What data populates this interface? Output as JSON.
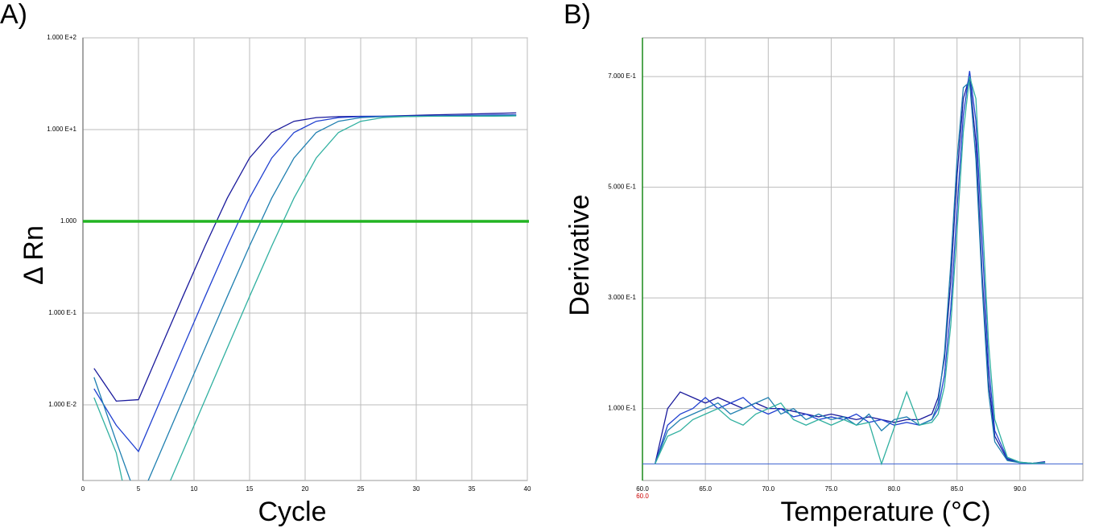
{
  "chart_data": [
    {
      "type": "line",
      "title": "A)",
      "xlabel": "Cycle",
      "ylabel": "Δ Rn",
      "ylog": true,
      "grid": true,
      "xlim": [
        0,
        40
      ],
      "ylim": [
        0.0015,
        100
      ],
      "xticks": [
        0,
        5,
        10,
        15,
        20,
        25,
        30,
        35,
        40
      ],
      "yticks": [
        {
          "value": 0.01,
          "label": "1.000 E-2"
        },
        {
          "value": 0.1,
          "label": "1.000 E-1"
        },
        {
          "value": 1,
          "label": "1.000"
        },
        {
          "value": 10,
          "label": "1.000 E+1"
        },
        {
          "value": 100,
          "label": "1.000 E+2"
        }
      ],
      "threshold": 1,
      "threshold_color": "#22b422",
      "x": [
        1,
        3,
        5,
        7,
        9,
        11,
        13,
        15,
        17,
        19,
        21,
        23,
        25,
        27,
        29,
        31,
        33,
        35,
        37,
        39
      ],
      "series": [
        {
          "color": "#1a1a9c",
          "values": [
            0.025,
            0.011,
            0.0114,
            0.0418,
            0.152,
            0.541,
            1.8,
            4.91,
            9.3,
            12.31,
            13.5,
            13.86,
            13.96,
            14.0,
            14.2,
            14.4,
            14.6,
            14.8,
            15.0,
            15.2
          ]
        },
        {
          "color": "#2040d0",
          "values": [
            0.015,
            0.006,
            0.0031,
            0.0114,
            0.0418,
            0.152,
            0.541,
            1.8,
            4.91,
            9.3,
            12.31,
            13.5,
            13.86,
            13.96,
            14.0,
            14.1,
            14.2,
            14.3,
            14.4,
            14.5
          ]
        },
        {
          "color": "#1f7fb0",
          "values": [
            0.02,
            0.004,
            0.00085,
            0.0031,
            0.0114,
            0.0418,
            0.152,
            0.541,
            1.8,
            4.91,
            9.3,
            12.31,
            13.5,
            13.86,
            13.96,
            14.0,
            14.0,
            14.1,
            14.2,
            14.3
          ]
        },
        {
          "color": "#30b0a0",
          "values": [
            0.012,
            0.003,
            0.00023,
            0.00085,
            0.0031,
            0.0114,
            0.0418,
            0.152,
            0.541,
            1.8,
            4.91,
            9.3,
            12.31,
            13.5,
            13.86,
            13.96,
            14.0,
            14.0,
            14.0,
            14.1
          ]
        }
      ]
    },
    {
      "type": "line",
      "title": "B)",
      "xlabel": "Temperature (°C)",
      "ylabel": "Derivative",
      "ylog": false,
      "grid": true,
      "xlim": [
        60,
        95
      ],
      "ylim": [
        -0.03,
        0.77
      ],
      "xticks": [
        {
          "value": 60,
          "label": "60.0"
        },
        {
          "value": 65,
          "label": "65.0"
        },
        {
          "value": 70,
          "label": "70.0"
        },
        {
          "value": 75,
          "label": "75.0"
        },
        {
          "value": 80,
          "label": "80.0"
        },
        {
          "value": 85,
          "label": "85.0"
        },
        {
          "value": 90,
          "label": "90.0"
        }
      ],
      "yticks": [
        {
          "value": 0.1,
          "label": "1.000 E-1"
        },
        {
          "value": 0.3,
          "label": "3.000 E-1"
        },
        {
          "value": 0.5,
          "label": "5.000 E-1"
        },
        {
          "value": 0.7,
          "label": "7.000 E-1"
        }
      ],
      "annotations": [
        {
          "text": "60.0",
          "x": 60,
          "color": "#cc0000"
        }
      ],
      "x": [
        61,
        62,
        63,
        64,
        65,
        66,
        67,
        68,
        69,
        70,
        71,
        72,
        73,
        74,
        75,
        76,
        77,
        78,
        79,
        80,
        81,
        82,
        83,
        83.5,
        84,
        84.5,
        85,
        85.5,
        86,
        86.5,
        87,
        87.5,
        88,
        89,
        90,
        91,
        92
      ],
      "series": [
        {
          "color": "#1a1a9c",
          "values": [
            0.0,
            0.1,
            0.13,
            0.12,
            0.11,
            0.12,
            0.11,
            0.1,
            0.11,
            0.1,
            0.1,
            0.095,
            0.09,
            0.085,
            0.09,
            0.085,
            0.08,
            0.085,
            0.08,
            0.075,
            0.08,
            0.08,
            0.09,
            0.12,
            0.19,
            0.33,
            0.52,
            0.66,
            0.7,
            0.58,
            0.34,
            0.15,
            0.05,
            0.008,
            0.002,
            0.001,
            0.004
          ]
        },
        {
          "color": "#2040d0",
          "values": [
            0.0,
            0.07,
            0.09,
            0.1,
            0.12,
            0.1,
            0.11,
            0.12,
            0.1,
            0.09,
            0.1,
            0.085,
            0.09,
            0.08,
            0.085,
            0.08,
            0.09,
            0.075,
            0.08,
            0.07,
            0.075,
            0.07,
            0.08,
            0.1,
            0.16,
            0.28,
            0.46,
            0.63,
            0.71,
            0.62,
            0.4,
            0.18,
            0.06,
            0.01,
            0.003,
            0.001,
            0.003
          ]
        },
        {
          "color": "#1f7fb0",
          "values": [
            0.0,
            0.06,
            0.08,
            0.09,
            0.1,
            0.11,
            0.09,
            0.1,
            0.11,
            0.12,
            0.09,
            0.1,
            0.08,
            0.09,
            0.08,
            0.085,
            0.07,
            0.09,
            0.06,
            0.08,
            0.085,
            0.07,
            0.08,
            0.11,
            0.2,
            0.36,
            0.55,
            0.68,
            0.69,
            0.55,
            0.32,
            0.13,
            0.04,
            0.006,
            0.002,
            0.001,
            0.002
          ]
        },
        {
          "color": "#30b0a0",
          "values": [
            0.0,
            0.05,
            0.06,
            0.08,
            0.09,
            0.1,
            0.08,
            0.07,
            0.09,
            0.1,
            0.11,
            0.08,
            0.07,
            0.08,
            0.07,
            0.08,
            0.07,
            0.075,
            0.0,
            0.065,
            0.13,
            0.07,
            0.075,
            0.09,
            0.14,
            0.25,
            0.42,
            0.6,
            0.7,
            0.66,
            0.45,
            0.22,
            0.08,
            0.012,
            0.003,
            0.001,
            0.002
          ]
        }
      ]
    }
  ]
}
